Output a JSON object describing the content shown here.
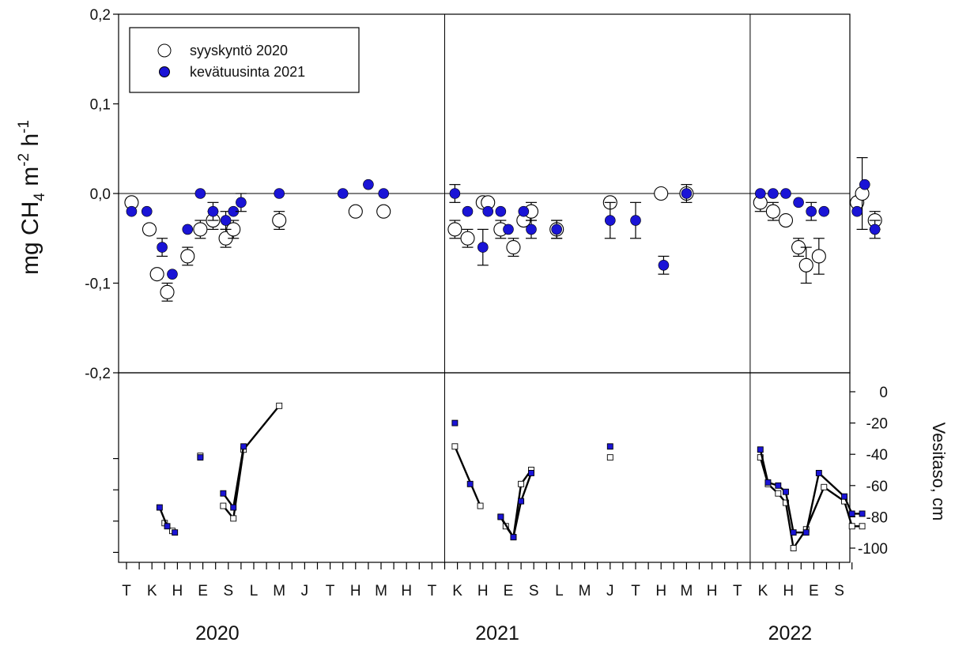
{
  "chart_data": [
    {
      "type": "scatter",
      "ylabel_parts": [
        "mg CH",
        "4",
        " m",
        "-2",
        " h",
        "-1"
      ],
      "ylim": [
        -0.2,
        0.2
      ],
      "yticks": [
        0.2,
        0.1,
        0.0,
        -0.1,
        -0.2
      ],
      "ytick_labels": [
        "0,2",
        "0,1",
        "0,0",
        "-0,1",
        "-0,2"
      ],
      "reference_line": 0,
      "legend": {
        "position": "top-left"
      },
      "x_months": [
        "T",
        "K",
        "H",
        "E",
        "S",
        "L",
        "M",
        "J",
        "T",
        "H",
        "M",
        "H",
        "T",
        "K",
        "H",
        "E",
        "S",
        "L",
        "M",
        "J",
        "T",
        "H",
        "M",
        "H",
        "T",
        "K",
        "H",
        "E",
        "S"
      ],
      "year_dividers_after_month_index": [
        12.5,
        24.5
      ],
      "years": [
        {
          "label": "2020",
          "center_month": 4.5
        },
        {
          "label": "2021",
          "center_month": 15.5
        },
        {
          "label": "2022",
          "center_month": 27.0
        }
      ],
      "series": [
        {
          "name": "syyskyntö 2020",
          "marker": "open-circle",
          "color": "#ffffff",
          "x": [
            0.2,
            0.9,
            1.2,
            1.6,
            2.4,
            2.9,
            3.4,
            3.9,
            4.2,
            6.0,
            9.0,
            10.1,
            12.9,
            13.4,
            14.0,
            14.2,
            14.7,
            15.2,
            15.6,
            15.9,
            16.9,
            19.0,
            21.0,
            22.0,
            24.9,
            25.4,
            25.9,
            26.4,
            26.7,
            27.2,
            28.7,
            28.9,
            29.4
          ],
          "y": [
            -0.01,
            -0.04,
            -0.09,
            -0.11,
            -0.07,
            -0.04,
            -0.03,
            -0.05,
            -0.04,
            -0.03,
            -0.02,
            -0.02,
            -0.04,
            -0.05,
            -0.01,
            -0.01,
            -0.04,
            -0.06,
            -0.03,
            -0.02,
            -0.04,
            -0.01,
            0.0,
            0.0,
            -0.01,
            -0.02,
            -0.03,
            -0.06,
            -0.08,
            -0.07,
            -0.01,
            0.0,
            -0.03
          ],
          "err": [
            0.005,
            0.005,
            0.005,
            0.01,
            0.01,
            0.01,
            0.01,
            0.01,
            0.01,
            0.01,
            0.0,
            0.0,
            0.01,
            0.01,
            0.0,
            0.0,
            0.01,
            0.01,
            0.0,
            0.01,
            0.01,
            0.005,
            0.0,
            0.0,
            0.01,
            0.01,
            0.0,
            0.01,
            0.02,
            0.02,
            0.0,
            0.04,
            0.01
          ]
        },
        {
          "name": "kevätuusinta 2021",
          "marker": "filled-circle",
          "color": "#1a14d6",
          "x": [
            0.2,
            0.8,
            1.4,
            1.8,
            2.4,
            2.9,
            3.4,
            3.9,
            4.2,
            4.5,
            6.0,
            8.5,
            9.5,
            10.1,
            12.9,
            13.4,
            14.0,
            14.2,
            14.7,
            15.0,
            15.6,
            15.9,
            16.9,
            19.0,
            20.0,
            21.1,
            22.0,
            24.9,
            25.4,
            25.9,
            26.4,
            26.9,
            27.4,
            28.7,
            29.0,
            29.4
          ],
          "y": [
            -0.02,
            -0.02,
            -0.06,
            -0.09,
            -0.04,
            0.0,
            -0.02,
            -0.03,
            -0.02,
            -0.01,
            0.0,
            0.0,
            0.01,
            0.0,
            0.0,
            -0.02,
            -0.06,
            -0.02,
            -0.02,
            -0.04,
            -0.02,
            -0.04,
            -0.04,
            -0.03,
            -0.03,
            -0.08,
            0.0,
            0.0,
            0.0,
            0.0,
            -0.01,
            -0.02,
            -0.02,
            -0.02,
            0.01,
            -0.04
          ],
          "err": [
            0.0,
            0.0,
            0.01,
            0.0,
            0.0,
            0.0,
            0.01,
            0.01,
            0.0,
            0.01,
            0.0,
            0.0,
            0.0,
            0.0,
            0.01,
            0.0,
            0.02,
            0.0,
            0.0,
            0.0,
            0.0,
            0.01,
            0.01,
            0.02,
            0.02,
            0.01,
            0.01,
            0.0,
            0.0,
            0.0,
            0.0,
            0.01,
            0.0,
            0.0,
            0.0,
            0.01
          ]
        }
      ]
    },
    {
      "type": "line",
      "ylabel": "Vesitaso, cm",
      "ylim": [
        -110,
        10
      ],
      "yticks": [
        0,
        -20,
        -40,
        -60,
        -80,
        -100
      ],
      "ytick_labels": [
        "0",
        "-20",
        "-40",
        "-60",
        "-80",
        "-100"
      ],
      "y_axis_side": "right",
      "series": [
        {
          "name": "syyskyntö 2020",
          "marker": "open-square",
          "segments": [
            {
              "x": [
                1.5,
                1.8
              ],
              "y": [
                -84,
                -89
              ]
            },
            {
              "x": [
                2.9
              ],
              "y": [
                -41
              ]
            },
            {
              "x": [
                3.8,
                4.2,
                4.6,
                6.0
              ],
              "y": [
                -73,
                -81,
                -37,
                -9
              ]
            },
            {
              "x": [
                12.9,
                13.9
              ],
              "y": [
                -35,
                -73
              ]
            },
            {
              "x": [
                14.7,
                14.9,
                15.2,
                15.5,
                15.9
              ],
              "y": [
                -80,
                -86,
                -93,
                -59,
                -50
              ]
            },
            {
              "x": [
                19.0
              ],
              "y": [
                -42
              ]
            },
            {
              "x": [
                24.9,
                25.2,
                25.6,
                25.9,
                26.2,
                26.7,
                27.4,
                28.2,
                28.5,
                28.9
              ],
              "y": [
                -42,
                -59,
                -65,
                -71,
                -100,
                -88,
                -61,
                -70,
                -86,
                -86
              ]
            }
          ]
        },
        {
          "name": "kevätuusinta 2021",
          "marker": "filled-square",
          "color": "#1a14d6",
          "segments": [
            {
              "x": [
                1.3,
                1.6
              ],
              "y": [
                -74,
                -86
              ]
            },
            {
              "x": [
                1.9
              ],
              "y": [
                -90
              ]
            },
            {
              "x": [
                2.9
              ],
              "y": [
                -42
              ]
            },
            {
              "x": [
                3.8,
                4.2,
                4.6
              ],
              "y": [
                -65,
                -74,
                -35
              ]
            },
            {
              "x": [
                12.9
              ],
              "y": [
                -20
              ]
            },
            {
              "x": [
                13.5
              ],
              "y": [
                -59
              ]
            },
            {
              "x": [
                14.7,
                15.2,
                15.5,
                15.9
              ],
              "y": [
                -80,
                -93,
                -70,
                -52
              ]
            },
            {
              "x": [
                19.0
              ],
              "y": [
                -35
              ]
            },
            {
              "x": [
                24.9,
                25.2,
                25.6,
                25.9,
                26.2,
                26.7,
                27.2,
                28.2,
                28.5,
                28.9
              ],
              "y": [
                -37,
                -58,
                -60,
                -64,
                -90,
                -90,
                -52,
                -67,
                -78,
                -78
              ]
            }
          ]
        }
      ]
    }
  ]
}
